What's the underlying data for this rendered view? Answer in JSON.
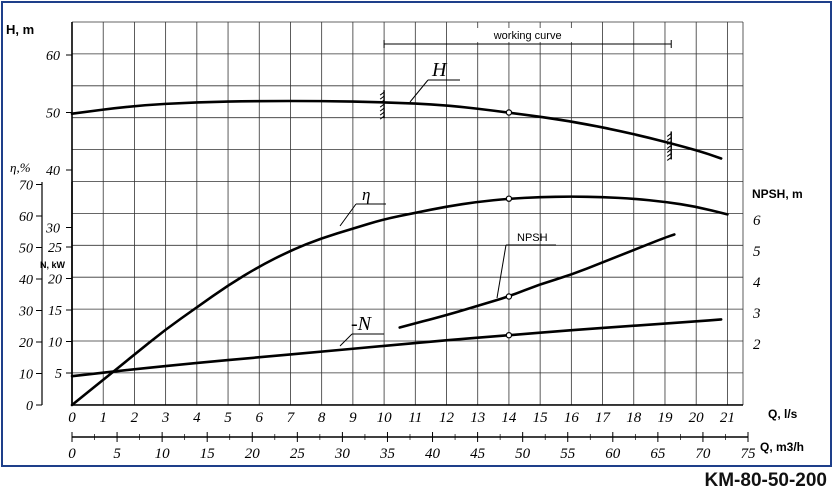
{
  "chart_data": {
    "type": "line",
    "y_left_outer": {
      "labels": [
        {
          "text": "H, m"
        },
        {
          "text": "η,%"
        }
      ]
    },
    "y_left_inner_label": "N, kW",
    "y_right_label": "NPSH, m",
    "x1": {
      "label": "Q, l/s",
      "ticks": [
        "0",
        "1",
        "2",
        "3",
        "4",
        "5",
        "6",
        "7",
        "8",
        "9",
        "10",
        "11",
        "12",
        "13",
        "14",
        "15",
        "16",
        "17",
        "18",
        "19",
        "20",
        "21"
      ],
      "range": [
        0,
        21
      ]
    },
    "x2": {
      "label": "Q, m3/h",
      "ticks": [
        "0",
        "5",
        "10",
        "15",
        "20",
        "25",
        "30",
        "35",
        "40",
        "45",
        "50",
        "55",
        "60",
        "65",
        "70",
        "75"
      ],
      "range": [
        0,
        75
      ]
    },
    "h_ticks": [
      "60",
      "50",
      "40",
      "30"
    ],
    "eta_ticks": [
      "70",
      "60",
      "50",
      "40",
      "30",
      "20",
      "10",
      "0"
    ],
    "n_ticks": [
      "25",
      "20",
      "15",
      "10",
      "5"
    ],
    "npsh_ticks": [
      "6",
      "5",
      "4",
      "3",
      "2"
    ],
    "annotation": "working curve",
    "working_range_q": [
      10,
      19.2
    ],
    "series": [
      {
        "name": "H",
        "unit": "m",
        "x": [
          0,
          2,
          4,
          6,
          8,
          10,
          12,
          14,
          16,
          18,
          20,
          20.8
        ],
        "y": [
          49.8,
          51.2,
          51.8,
          52,
          52,
          51.8,
          51.3,
          50,
          48.5,
          46.3,
          43.5,
          42
        ]
      },
      {
        "name": "η",
        "unit": "%",
        "x": [
          0,
          1,
          2,
          3,
          4,
          5,
          6,
          7,
          8,
          9,
          10,
          11,
          12,
          13,
          14,
          15,
          16,
          17,
          18,
          19,
          20,
          21
        ],
        "y": [
          0,
          8,
          16,
          24,
          31,
          38,
          44,
          49,
          53,
          56,
          59,
          61,
          63,
          64.5,
          65.5,
          66,
          66.2,
          66,
          65.5,
          64.5,
          63,
          60.5
        ]
      },
      {
        "name": "N",
        "unit": "kW",
        "x": [
          0,
          2,
          4,
          6,
          8,
          10,
          12,
          14,
          16,
          18,
          20,
          20.8
        ],
        "y": [
          4.5,
          5.6,
          6.6,
          7.5,
          8.4,
          9.3,
          10.2,
          11,
          11.8,
          12.5,
          13.2,
          13.5
        ]
      },
      {
        "name": "NPSH",
        "unit": "m",
        "x": [
          10.5,
          12,
          13,
          14,
          15,
          16,
          17,
          18,
          19,
          19.3
        ],
        "y": [
          2.5,
          2.9,
          3.2,
          3.5,
          3.9,
          4.2,
          4.6,
          5.0,
          5.4,
          5.5
        ]
      }
    ],
    "marker_q": 14
  },
  "model": "KM-80-50-200"
}
